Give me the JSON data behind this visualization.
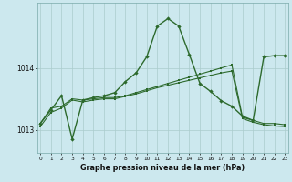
{
  "x": [
    0,
    1,
    2,
    3,
    4,
    5,
    6,
    7,
    8,
    9,
    10,
    11,
    12,
    13,
    14,
    15,
    16,
    17,
    18,
    19,
    20,
    21,
    22,
    23
  ],
  "line1_y": [
    1013.1,
    1013.35,
    1013.38,
    1013.5,
    1013.48,
    1013.5,
    1013.52,
    1013.52,
    1013.55,
    1013.6,
    1013.65,
    1013.7,
    1013.75,
    1013.8,
    1013.85,
    1013.9,
    1013.95,
    1014.0,
    1014.05,
    1013.2,
    1013.15,
    1013.1,
    1013.1,
    1013.08
  ],
  "line2_y": [
    1013.05,
    1013.28,
    1013.35,
    1013.48,
    1013.45,
    1013.48,
    1013.5,
    1013.5,
    1013.54,
    1013.58,
    1013.63,
    1013.68,
    1013.72,
    1013.76,
    1013.8,
    1013.84,
    1013.88,
    1013.92,
    1013.95,
    1013.18,
    1013.12,
    1013.08,
    1013.06,
    1013.05
  ],
  "line3_y": [
    1013.1,
    1013.32,
    1013.55,
    1012.85,
    1013.48,
    1013.52,
    1013.55,
    1013.6,
    1013.78,
    1013.92,
    1014.18,
    1014.68,
    1014.8,
    1014.68,
    1014.22,
    1013.75,
    1013.62,
    1013.47,
    1013.38,
    1013.22,
    1013.15,
    1014.18,
    1014.2,
    1014.2
  ],
  "ylim_min": 1012.62,
  "ylim_max": 1015.05,
  "yticks": [
    1013,
    1014
  ],
  "bg_color": "#cce8ee",
  "line_color": "#2d6a2d",
  "grid_color": "#aacccc",
  "xlabel": "Graphe pression niveau de la mer (hPa)"
}
